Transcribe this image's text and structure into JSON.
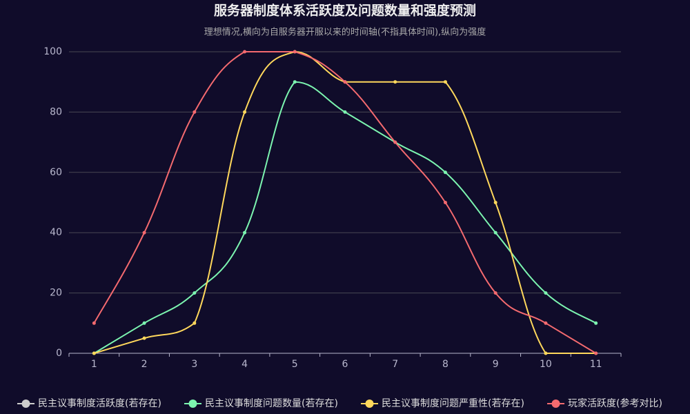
{
  "chart_data": {
    "type": "line",
    "title": "服务器制度体系活跃度及问题数量和强度预测",
    "subtitle": "理想情况,横向为自服务器开服以来的时间轴(不指具体时间),纵向为强度",
    "categories": [
      1,
      2,
      3,
      4,
      5,
      6,
      7,
      8,
      9,
      10,
      11
    ],
    "series": [
      {
        "name": "民主议事制度活跃度(若存在)",
        "color": "#cccccc",
        "values": [
          null,
          null,
          null,
          null,
          null,
          null,
          null,
          null,
          null,
          null,
          null
        ]
      },
      {
        "name": "民主议事制度问题数量(若存在)",
        "color": "#7cf5b0",
        "values": [
          0,
          10,
          20,
          40,
          90,
          80,
          70,
          60,
          40,
          20,
          10
        ]
      },
      {
        "name": "民主议事制度问题严重性(若存在)",
        "color": "#ffd85c",
        "values": [
          0,
          5,
          10,
          80,
          100,
          90,
          90,
          90,
          50,
          0,
          0
        ]
      },
      {
        "name": "玩家活跃度(参考对比)",
        "color": "#f46a6f",
        "values": [
          10,
          40,
          80,
          100,
          100,
          90,
          70,
          50,
          20,
          10,
          0
        ]
      }
    ],
    "ylim": [
      0,
      100
    ],
    "yticks": [
      0,
      20,
      40,
      60,
      80,
      100
    ],
    "grid": true,
    "smooth": true,
    "legend": "bottom"
  }
}
